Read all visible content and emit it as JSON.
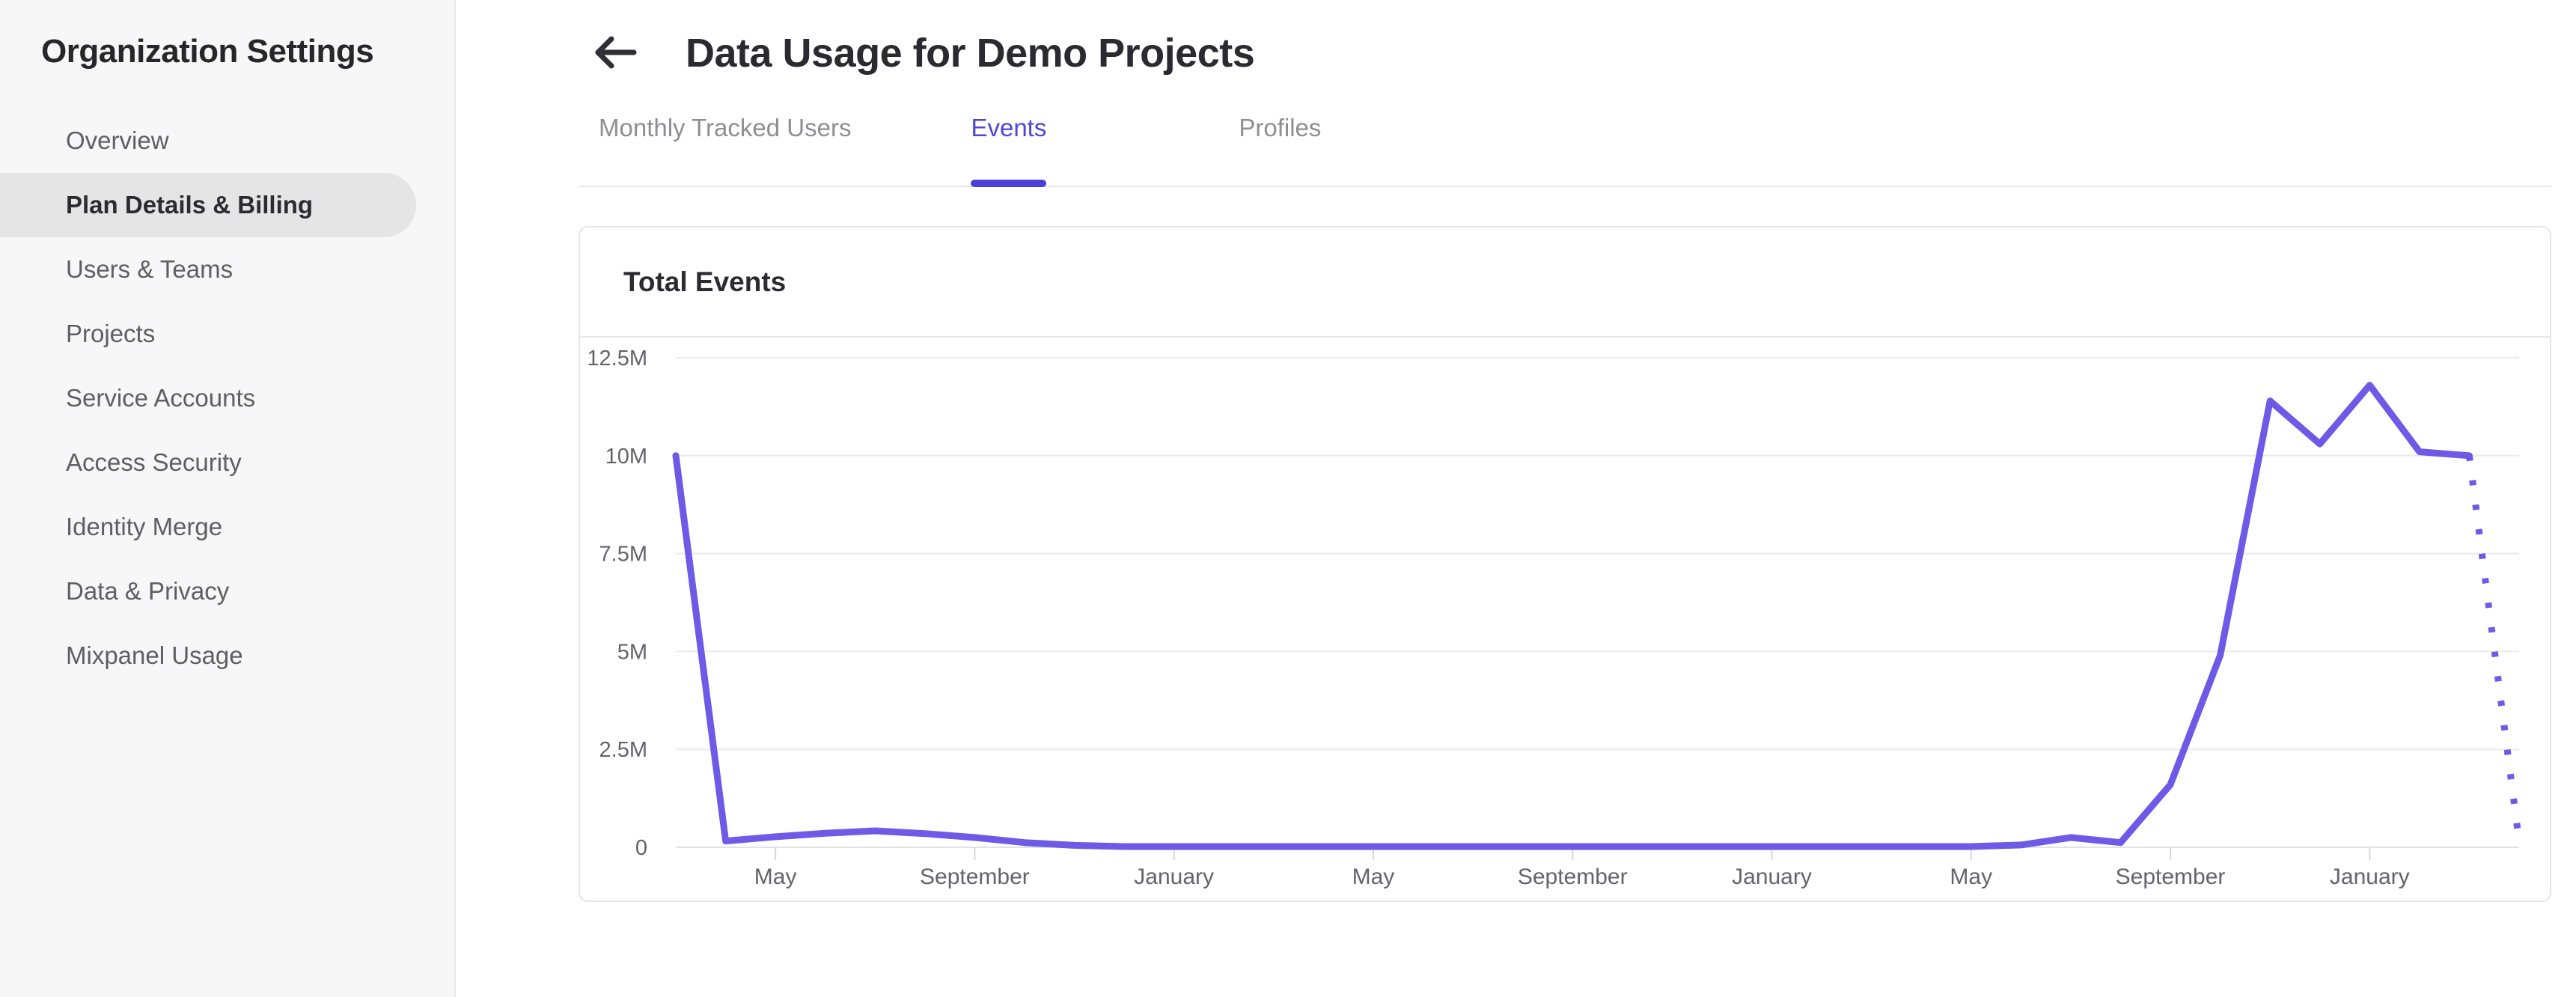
{
  "sidebar": {
    "title": "Organization Settings",
    "items": [
      {
        "label": "Overview",
        "active": false
      },
      {
        "label": "Plan Details & Billing",
        "active": true
      },
      {
        "label": "Users & Teams",
        "active": false
      },
      {
        "label": "Projects",
        "active": false
      },
      {
        "label": "Service Accounts",
        "active": false
      },
      {
        "label": "Access Security",
        "active": false
      },
      {
        "label": "Identity Merge",
        "active": false
      },
      {
        "label": "Data & Privacy",
        "active": false
      },
      {
        "label": "Mixpanel Usage",
        "active": false
      }
    ]
  },
  "header": {
    "title": "Data Usage for Demo Projects"
  },
  "tabs": [
    {
      "label": "Monthly Tracked Users",
      "active": false
    },
    {
      "label": "Events",
      "active": true
    },
    {
      "label": "Profiles",
      "active": false
    }
  ],
  "card": {
    "title": "Total Events"
  },
  "colors": {
    "line_purple": "#6e5ae6",
    "tab_accent": "#4b40da",
    "grid_line": "#ebebec",
    "zero_axis": "#e2e2e4",
    "tick_mark": "#d8d8da",
    "axis_label": "#63636a"
  },
  "chart_data": {
    "type": "line",
    "title": "Total Events",
    "series_name": "Total Events",
    "unit": "millions of events per month",
    "ylim": [
      0,
      12.5
    ],
    "y_tick_labels": [
      "12.5M",
      "10M",
      "7.5M",
      "5M",
      "2.5M",
      "0"
    ],
    "y_tick_values": [
      12.5,
      10,
      7.5,
      5,
      2.5,
      0
    ],
    "x_tick_labels": [
      "May",
      "September",
      "January",
      "May",
      "September",
      "January",
      "May",
      "September",
      "January"
    ],
    "x_tick_indices": [
      2,
      6,
      10,
      14,
      18,
      22,
      26,
      30,
      34
    ],
    "grid": "horizontal",
    "legend": "none",
    "values_millions": [
      10.0,
      0.16,
      0.27,
      0.36,
      0.42,
      0.35,
      0.25,
      0.12,
      0.05,
      0.02,
      0.02,
      0.02,
      0.02,
      0.02,
      0.02,
      0.02,
      0.02,
      0.02,
      0.02,
      0.02,
      0.02,
      0.02,
      0.02,
      0.02,
      0.02,
      0.02,
      0.02,
      0.06,
      0.25,
      0.12,
      1.6,
      4.9,
      11.4,
      10.3,
      11.8,
      10.1,
      10.0,
      0.15
    ],
    "projected_tail_points": 1,
    "projected_style": "dotted"
  }
}
